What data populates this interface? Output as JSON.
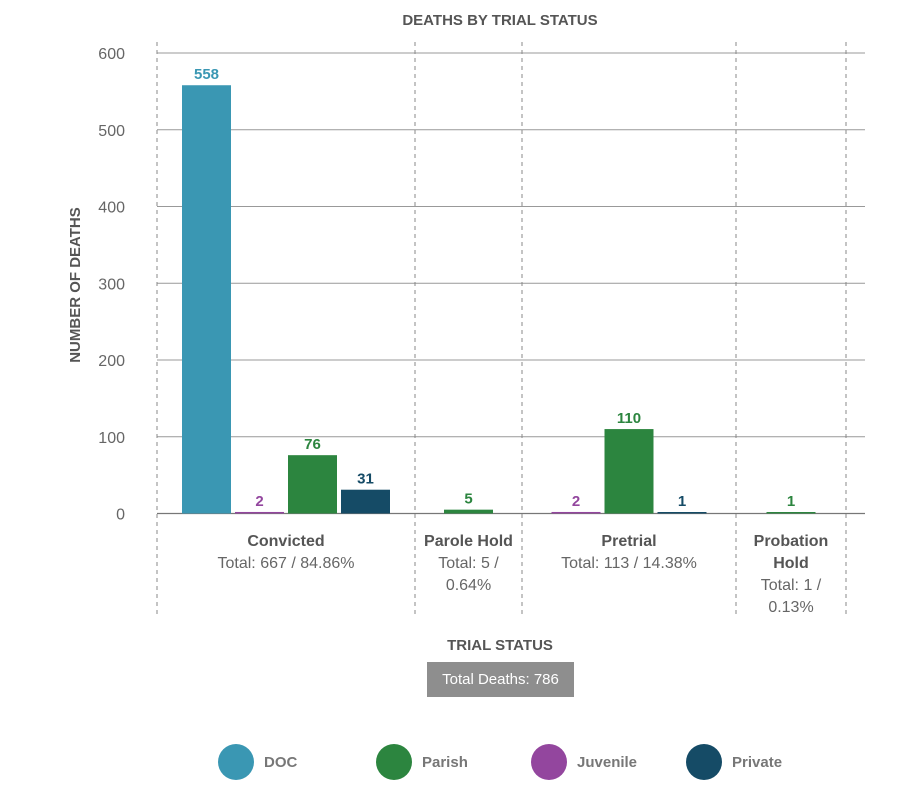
{
  "chart_data": {
    "type": "bar",
    "title": "DEATHS BY TRIAL STATUS",
    "xlabel": "TRIAL STATUS",
    "ylabel": "NUMBER OF DEATHS",
    "ylim": [
      0,
      600
    ],
    "yticks": [
      "0",
      "100",
      "200",
      "300",
      "400",
      "500",
      "600"
    ],
    "grid": true,
    "categories": [
      {
        "name": "Convicted",
        "total": "Total: 667 / 84.86%"
      },
      {
        "name": "Parole Hold",
        "total": "Total: 5 / 0.64%"
      },
      {
        "name": "Pretrial",
        "total": "Total: 113 / 14.38%"
      },
      {
        "name": "Probation Hold",
        "total": "Total: 1 / 0.13%"
      }
    ],
    "series": [
      {
        "name": "DOC",
        "color": "#3a97b3",
        "values": [
          558,
          null,
          null,
          null
        ]
      },
      {
        "name": "Juvenile",
        "color": "#93469e",
        "values": [
          2,
          null,
          2,
          null
        ]
      },
      {
        "name": "Parish",
        "color": "#2c853f",
        "values": [
          76,
          5,
          110,
          1
        ]
      },
      {
        "name": "Private",
        "color": "#154b66",
        "values": [
          31,
          null,
          1,
          null
        ]
      }
    ],
    "total_deaths_label": "Total Deaths: 786",
    "legend_position": "bottom",
    "legend": [
      {
        "name": "DOC",
        "color": "#3a97b3"
      },
      {
        "name": "Parish",
        "color": "#2c853f"
      },
      {
        "name": "Juvenile",
        "color": "#93469e"
      },
      {
        "name": "Private",
        "color": "#154b66"
      }
    ]
  }
}
